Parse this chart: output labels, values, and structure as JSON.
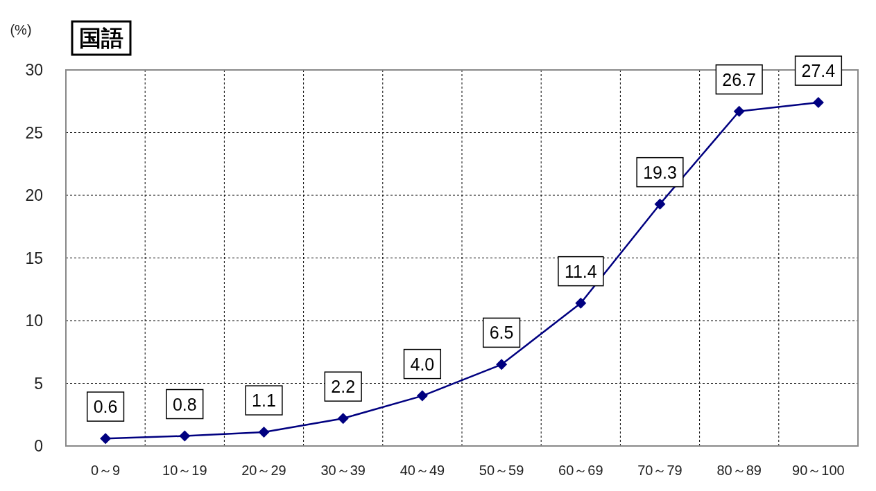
{
  "chart_data": {
    "type": "line",
    "title": "国語",
    "ylabel": "(%)",
    "categories": [
      "0～9",
      "10～19",
      "20～29",
      "30～39",
      "40～49",
      "50～59",
      "60～69",
      "70～79",
      "80～89",
      "90～100"
    ],
    "series": [
      {
        "color": "#000080",
        "values": [
          0.6,
          0.8,
          1.1,
          2.2,
          4.0,
          6.5,
          11.4,
          19.3,
          26.7,
          27.4
        ],
        "value_labels": [
          "0.6",
          "0.8",
          "1.1",
          "2.2",
          "4.0",
          "6.5",
          "11.4",
          "19.3",
          "26.7",
          "27.4"
        ]
      }
    ],
    "ylim": [
      0,
      30
    ],
    "yticks": [
      0,
      5,
      10,
      15,
      20,
      25,
      30
    ],
    "grid": true,
    "marker": "diamond",
    "line_style": "solid"
  }
}
